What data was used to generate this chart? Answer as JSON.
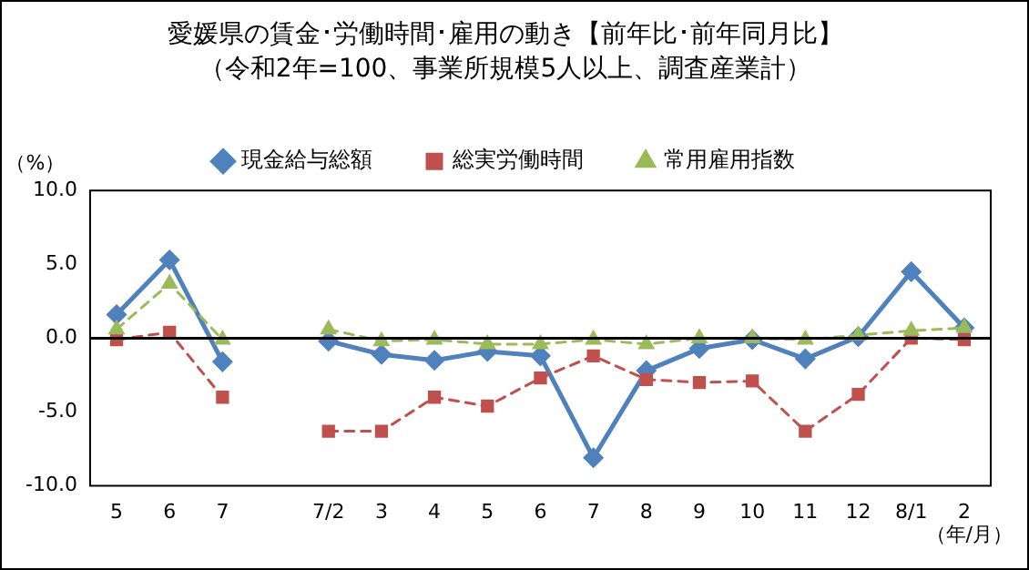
{
  "chart_data": {
    "type": "line",
    "title": "愛媛県の賃金･労働時間･雇用の動き【前年比･前年同月比】",
    "subtitle": "（令和2年=100、事業所規模5人以上、調査産業計）",
    "ylabel": "（%）",
    "xlabel": "（年/月）",
    "categories": [
      "5",
      "6",
      "7",
      null,
      "7/2",
      "3",
      "4",
      "5",
      "6",
      "7",
      "8",
      "9",
      "10",
      "11",
      "12",
      "8/1",
      "2"
    ],
    "series": [
      {
        "name": "現金給与総額",
        "color": "#4f81bd",
        "marker": "diamond",
        "line_style": "solid",
        "values": [
          1.6,
          5.3,
          -1.6,
          null,
          -0.2,
          -1.1,
          -1.5,
          -0.9,
          -1.2,
          -8.1,
          -2.2,
          -0.7,
          -0.1,
          -1.4,
          0.1,
          4.5,
          0.7
        ]
      },
      {
        "name": "総実労働時間",
        "color": "#c0504d",
        "marker": "square",
        "line_style": "dashed",
        "values": [
          -0.1,
          0.4,
          -4.0,
          null,
          -6.3,
          -6.3,
          -4.0,
          -4.6,
          -2.7,
          -1.2,
          -2.8,
          -3.0,
          -2.9,
          -6.3,
          -3.8,
          0.0,
          -0.1
        ]
      },
      {
        "name": "常用雇用指数",
        "color": "#9bbb59",
        "marker": "triangle",
        "line_style": "dashed",
        "values": [
          0.6,
          3.7,
          -0.1,
          null,
          0.6,
          -0.2,
          -0.1,
          -0.4,
          -0.4,
          -0.1,
          -0.4,
          0.0,
          0.0,
          -0.1,
          0.2,
          0.5,
          0.7
        ]
      }
    ],
    "ylim": [
      -10,
      10
    ],
    "yticks": [
      {
        "value": 10,
        "label": "10.0"
      },
      {
        "value": 5,
        "label": "5.0"
      },
      {
        "value": 0,
        "label": "0.0"
      },
      {
        "value": -5,
        "label": "-5.0"
      },
      {
        "value": -10,
        "label": "-10.0"
      }
    ],
    "ref_lines": [
      {
        "axis": "y",
        "value": 0,
        "color": "#000000"
      }
    ],
    "grid": false,
    "legend": "top"
  }
}
